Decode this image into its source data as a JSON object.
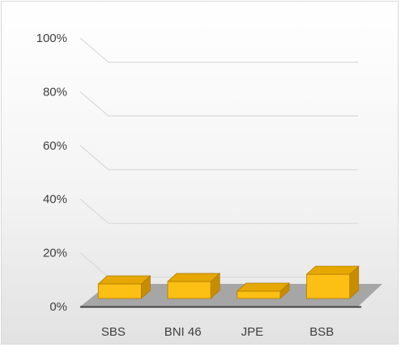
{
  "chart_data": {
    "type": "bar",
    "style": "3d-column",
    "categories": [
      "SBS",
      "BNI 46",
      "JPE",
      "BSB"
    ],
    "values": [
      6,
      7,
      3,
      10
    ],
    "y_ticks": [
      "0%",
      "20%",
      "40%",
      "60%",
      "80%",
      "100%"
    ],
    "y_tick_values": [
      0,
      20,
      40,
      60,
      80,
      100
    ],
    "ylim": [
      0,
      100
    ],
    "grid": true,
    "legend": "none",
    "colors": {
      "bar_front": "#fcbf14",
      "bar_top": "#e6a800",
      "bar_side": "#c78d00",
      "bar_edge": "#b07d00",
      "floor": "#a6a6a6",
      "gridline": "#d9d9d9",
      "axis_line": "#404040"
    }
  }
}
